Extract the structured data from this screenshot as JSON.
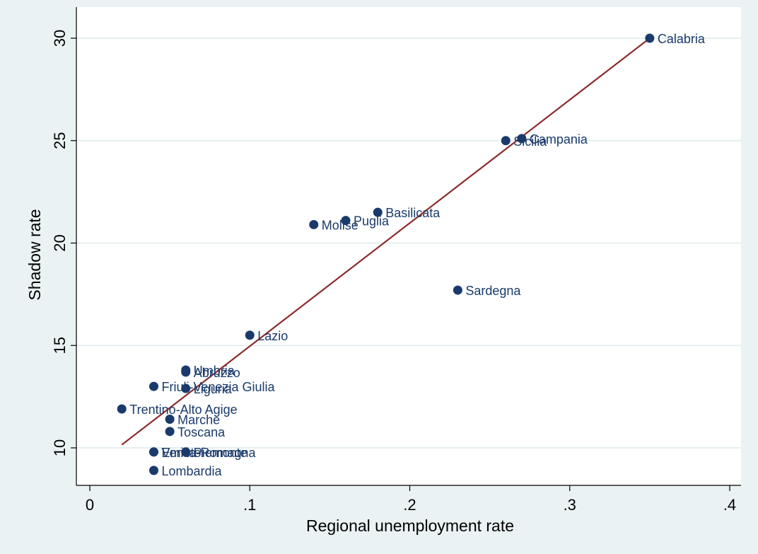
{
  "chart_data": {
    "type": "scatter",
    "xlabel": "Regional unemployment rate",
    "ylabel": "Shadow rate",
    "xlim": [
      0,
      0.4
    ],
    "ylim": [
      10,
      30
    ],
    "x_ticks": [
      0,
      0.1,
      0.2,
      0.3,
      0.4
    ],
    "x_tick_labels": [
      "0",
      ".1",
      ".2",
      ".3",
      ".4"
    ],
    "y_ticks": [
      10,
      15,
      20,
      25,
      30
    ],
    "y_tick_labels": [
      "10",
      "15",
      "20",
      "25",
      "30"
    ],
    "grid": "horizontal",
    "points": [
      {
        "label": "Calabria",
        "x": 0.35,
        "y": 30.0
      },
      {
        "label": "Campania",
        "x": 0.27,
        "y": 25.1
      },
      {
        "label": "Sicilia",
        "x": 0.26,
        "y": 25.0
      },
      {
        "label": "Basilicata",
        "x": 0.18,
        "y": 21.5
      },
      {
        "label": "Puglia",
        "x": 0.16,
        "y": 21.1
      },
      {
        "label": "Molise",
        "x": 0.14,
        "y": 20.9
      },
      {
        "label": "Sardegna",
        "x": 0.23,
        "y": 17.7
      },
      {
        "label": "Lazio",
        "x": 0.1,
        "y": 15.5
      },
      {
        "label": "Umbria",
        "x": 0.06,
        "y": 13.8
      },
      {
        "label": "Abruzzo",
        "x": 0.06,
        "y": 13.7
      },
      {
        "label": "Friuli-Venezia Giulia",
        "x": 0.04,
        "y": 13.0
      },
      {
        "label": "Liguria",
        "x": 0.06,
        "y": 12.9
      },
      {
        "label": "Trentino-Alto Agige",
        "x": 0.02,
        "y": 11.9
      },
      {
        "label": "Marche",
        "x": 0.05,
        "y": 11.4
      },
      {
        "label": "Toscana",
        "x": 0.05,
        "y": 10.8
      },
      {
        "label": "Veneto",
        "x": 0.04,
        "y": 9.8
      },
      {
        "label": "Emilia-Romagna",
        "x": 0.04,
        "y": 9.8
      },
      {
        "label": "Piemonte",
        "x": 0.06,
        "y": 9.8
      },
      {
        "label": "Lombardia",
        "x": 0.04,
        "y": 8.9
      }
    ],
    "fit_line": {
      "x": [
        0.02,
        0.35
      ],
      "y": [
        10.15,
        30.0
      ]
    },
    "colors": {
      "background": "#eaf2f3",
      "plot_area": "#ffffff",
      "marker": "#1a3a6b",
      "point_label": "#1a3a6b",
      "fit_line": "#8b2a2a",
      "gridline": "#e6eef0",
      "axis": "#000000"
    }
  }
}
